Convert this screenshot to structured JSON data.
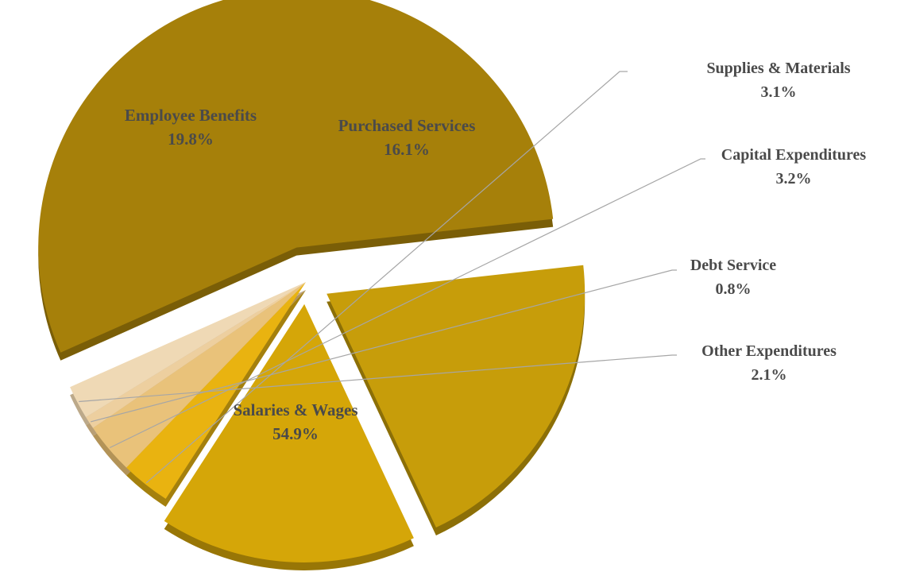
{
  "chart_data": {
    "type": "pie",
    "title": "",
    "style": "3d-exploded",
    "slices": [
      {
        "label": "Salaries & Wages",
        "percent_label": "54.9%",
        "value": 54.9,
        "color": "#a6800a",
        "side_color": "#7a5e07"
      },
      {
        "label": "Employee Benefits",
        "percent_label": "19.8%",
        "value": 19.8,
        "color": "#c79d0a",
        "side_color": "#8c6f07"
      },
      {
        "label": "Purchased Services",
        "percent_label": "16.1%",
        "value": 16.1,
        "color": "#d5a608",
        "side_color": "#987606"
      },
      {
        "label": "Supplies & Materials",
        "percent_label": "3.1%",
        "value": 3.1,
        "color": "#e9b310",
        "side_color": "#a4800d"
      },
      {
        "label": "Capital Expenditures",
        "percent_label": "3.2%",
        "value": 3.2,
        "color": "#e9c27a",
        "side_color": "#b39357"
      },
      {
        "label": "Debt Service",
        "percent_label": "0.8%",
        "value": 0.8,
        "color": "#edcf9f",
        "side_color": "#b89e74"
      },
      {
        "label": "Other Expenditures",
        "percent_label": "2.1%",
        "value": 2.1,
        "color": "#efd9b5",
        "side_color": "#bca98a"
      }
    ]
  }
}
